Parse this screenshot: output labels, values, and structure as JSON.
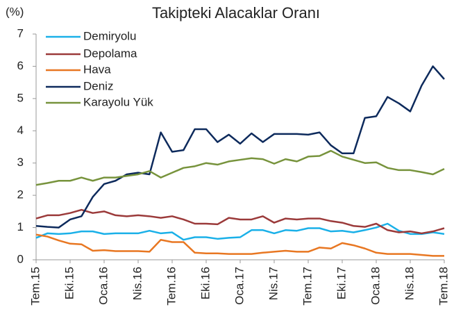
{
  "chart_data": {
    "type": "line",
    "title": "Takipteki Alacaklar Oranı",
    "y_label": "(%)",
    "categories": [
      "Tem.15",
      null,
      null,
      "Eki.15",
      null,
      null,
      "Oca.16",
      null,
      null,
      "Nis.16",
      null,
      null,
      "Tem.16",
      null,
      null,
      "Eki.16",
      null,
      null,
      "Oca.17",
      null,
      null,
      "Nis.17",
      null,
      null,
      "Tem.17",
      null,
      null,
      "Eki.17",
      null,
      null,
      "Oca.18",
      null,
      null,
      "Nis.18",
      null,
      null,
      "Tem.18"
    ],
    "series": [
      {
        "name": "Demiryolu",
        "color": "#1ab0e8",
        "values": [
          0.68,
          0.82,
          0.8,
          0.82,
          0.88,
          0.88,
          0.8,
          0.82,
          0.82,
          0.82,
          0.9,
          0.82,
          0.85,
          0.62,
          0.7,
          0.7,
          0.65,
          0.68,
          0.7,
          0.92,
          0.92,
          0.82,
          0.92,
          0.9,
          0.98,
          0.98,
          0.88,
          0.9,
          0.85,
          0.92,
          1.0,
          1.12,
          0.9,
          0.8,
          0.8,
          0.85,
          0.8
        ]
      },
      {
        "name": "Depolama",
        "color": "#9b3a3a",
        "values": [
          1.28,
          1.38,
          1.38,
          1.45,
          1.55,
          1.45,
          1.5,
          1.38,
          1.35,
          1.38,
          1.35,
          1.3,
          1.35,
          1.25,
          1.12,
          1.12,
          1.1,
          1.3,
          1.25,
          1.25,
          1.35,
          1.15,
          1.28,
          1.25,
          1.28,
          1.28,
          1.2,
          1.15,
          1.05,
          1.02,
          1.12,
          0.92,
          0.85,
          0.88,
          0.82,
          0.88,
          0.98
        ]
      },
      {
        "name": "Hava",
        "color": "#e87722",
        "values": [
          0.78,
          0.72,
          0.6,
          0.5,
          0.48,
          0.28,
          0.3,
          0.27,
          0.27,
          0.27,
          0.25,
          0.62,
          0.55,
          0.55,
          0.22,
          0.2,
          0.2,
          0.18,
          0.18,
          0.18,
          0.22,
          0.25,
          0.28,
          0.25,
          0.25,
          0.38,
          0.35,
          0.52,
          0.45,
          0.35,
          0.22,
          0.18,
          0.18,
          0.18,
          0.15,
          0.12,
          0.12
        ]
      },
      {
        "name": "Deniz",
        "color": "#0d2a5c",
        "values": [
          1.05,
          1.02,
          1.0,
          1.25,
          1.35,
          1.95,
          2.35,
          2.45,
          2.65,
          2.7,
          2.65,
          3.95,
          3.35,
          3.4,
          4.05,
          4.05,
          3.65,
          3.88,
          3.6,
          3.92,
          3.65,
          3.9,
          3.9,
          3.9,
          3.88,
          3.95,
          3.55,
          3.3,
          3.3,
          4.4,
          4.45,
          5.05,
          4.85,
          4.6,
          5.4,
          6.0,
          5.6
        ]
      },
      {
        "name": "Karayolu Yük",
        "color": "#77933c",
        "values": [
          2.32,
          2.38,
          2.45,
          2.45,
          2.55,
          2.45,
          2.55,
          2.55,
          2.6,
          2.65,
          2.75,
          2.55,
          2.7,
          2.85,
          2.9,
          3.0,
          2.95,
          3.05,
          3.1,
          3.15,
          3.12,
          2.98,
          3.12,
          3.05,
          3.2,
          3.22,
          3.38,
          3.2,
          3.1,
          3.0,
          3.02,
          2.85,
          2.78,
          2.78,
          2.72,
          2.65,
          2.82
        ]
      }
    ],
    "ylim": [
      0,
      7
    ],
    "yticks": [
      0,
      1,
      2,
      3,
      4,
      5,
      6,
      7
    ],
    "grid": false,
    "legend": "top-left"
  }
}
